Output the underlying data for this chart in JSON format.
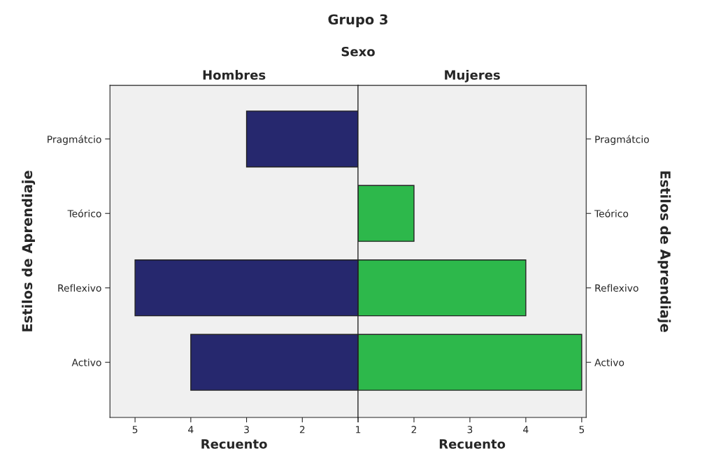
{
  "chart_data": [
    {
      "type": "bar",
      "orientation": "horizontal",
      "title": "Hombres",
      "annotations": [
        "Grupo 3",
        "Sexo"
      ],
      "xlabel": "Recuento",
      "ylabel": "Estilos de Aprendiaje",
      "categories": [
        "Pragmátcio",
        "Teórico",
        "Reflexivo",
        "Activo"
      ],
      "series": [
        {
          "color": "#26286e",
          "values": [
            3,
            null,
            5,
            4
          ]
        }
      ],
      "xlim": [
        5.45,
        1
      ],
      "xticks": [
        5,
        4,
        3,
        2,
        {
          "value": 1,
          "label": null
        }
      ]
    },
    {
      "type": "bar",
      "orientation": "horizontal",
      "title": "Mujeres",
      "xlabel": "Recuento",
      "ylabel": "Estilos de Aprendiaje",
      "categories": [
        "Pragmátcio",
        "Teórico",
        "Reflexivo",
        "Activo"
      ],
      "series": [
        {
          "color": "#2db84b",
          "values": [
            null,
            2,
            4,
            5
          ]
        }
      ],
      "xlim": [
        1,
        5.08
      ],
      "xticks": [
        1,
        2,
        3,
        4,
        5
      ]
    }
  ]
}
